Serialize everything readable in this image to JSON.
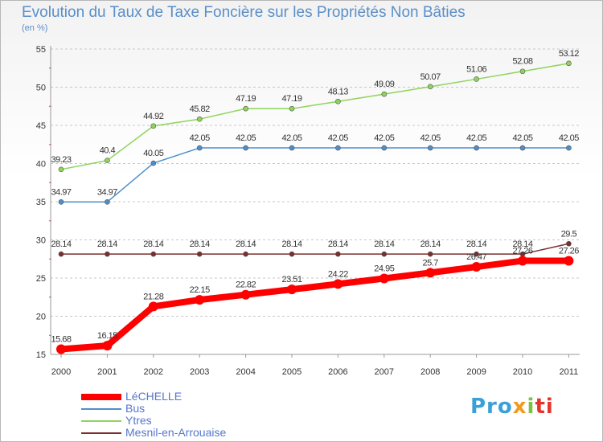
{
  "chart_data": {
    "type": "line",
    "title": "Evolution du Taux de Taxe Foncière sur les Propriétés Non Bâties",
    "subtitle": "(en %)",
    "xlabel": "",
    "ylabel": "",
    "categories": [
      "2000",
      "2001",
      "2002",
      "2003",
      "2004",
      "2005",
      "2006",
      "2007",
      "2008",
      "2009",
      "2010",
      "2011"
    ],
    "ylim": [
      15,
      55
    ],
    "yticks": [
      15,
      20,
      25,
      30,
      35,
      40,
      45,
      50,
      55
    ],
    "grid": "horizontal dashed",
    "legend_position": "bottom-left",
    "series": [
      {
        "name": "LéCHELLE",
        "color": "#ff0000",
        "values": [
          15.68,
          16.15,
          21.28,
          22.15,
          22.82,
          23.51,
          24.22,
          24.95,
          25.7,
          26.47,
          27.26,
          27.26
        ],
        "labels": [
          "15.68",
          "16.15",
          "21.28",
          "22.15",
          "22.82",
          "23.51",
          "24.22",
          "24.95",
          "25.7",
          "26.47",
          "27.26",
          "27.26"
        ]
      },
      {
        "name": "Bus",
        "color": "#4d8fcb",
        "values": [
          34.97,
          34.97,
          40.05,
          42.05,
          42.05,
          42.05,
          42.05,
          42.05,
          42.05,
          42.05,
          42.05,
          42.05
        ],
        "labels": [
          "34.97",
          "34.97",
          "40.05",
          "42.05",
          "42.05",
          "42.05",
          "42.05",
          "42.05",
          "42.05",
          "42.05",
          "42.05",
          "42.05"
        ]
      },
      {
        "name": "Ytres",
        "color": "#8fd45a",
        "values": [
          39.23,
          40.4,
          44.92,
          45.82,
          47.19,
          47.19,
          48.13,
          49.09,
          50.07,
          51.06,
          52.08,
          53.12
        ],
        "labels": [
          "39.23",
          "40.4",
          "44.92",
          "45.82",
          "47.19",
          "47.19",
          "48.13",
          "49.09",
          "50.07",
          "51.06",
          "52.08",
          "53.12"
        ]
      },
      {
        "name": "Mesnil-en-Arrouaise",
        "color": "#7a2e2e",
        "values": [
          28.14,
          28.14,
          28.14,
          28.14,
          28.14,
          28.14,
          28.14,
          28.14,
          28.14,
          28.14,
          28.14,
          29.5
        ],
        "labels": [
          "28.14",
          "28.14",
          "28.14",
          "28.14",
          "28.14",
          "28.14",
          "28.14",
          "28.14",
          "28.14",
          "28.14",
          "28.14",
          "29.5"
        ]
      }
    ]
  },
  "brand": {
    "logo_parts": [
      "Pro",
      "x",
      "i",
      "ti"
    ]
  }
}
